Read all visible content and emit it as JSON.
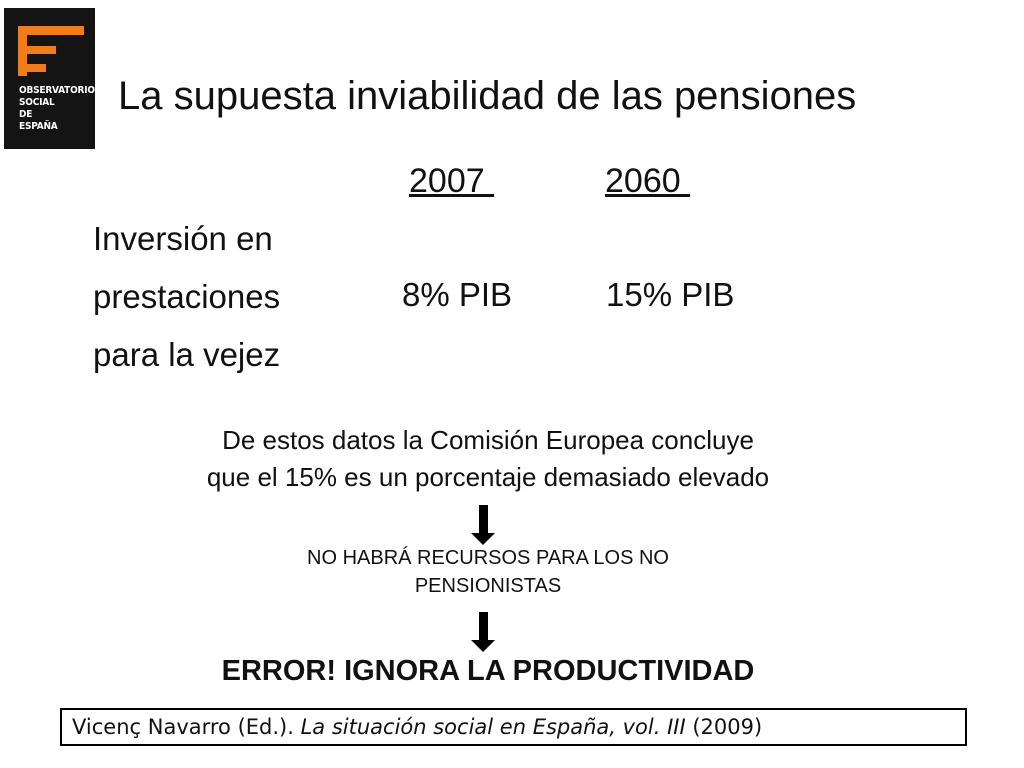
{
  "logo": {
    "lines": [
      "OBSERVATORIO",
      "SOCIAL",
      "DE",
      "ESPAÑA"
    ],
    "accent_color": "#f07d1a"
  },
  "slide": {
    "title": "La supuesta inviabilidad de las pensiones",
    "table": {
      "years": [
        "2007 ",
        "2060 "
      ],
      "row_label_lines": [
        "Inversión en",
        "prestaciones",
        "para la vejez"
      ],
      "values": [
        "8% PIB",
        "15% PIB"
      ]
    },
    "conclusion_lines": [
      "De estos datos la Comisión Europea concluye",
      "que el 15% es un porcentaje demasiado elevado"
    ],
    "middle_lines": [
      "NO HABRÁ RECURSOS PARA LOS NO",
      "PENSIONISTAS"
    ],
    "error_statement": "ERROR! IGNORA LA PRODUCTIVIDAD",
    "citation": {
      "author": "Vicenç Navarro (Ed.). ",
      "work": "La situación social en España, vol. III",
      "year": " (2009)"
    }
  }
}
